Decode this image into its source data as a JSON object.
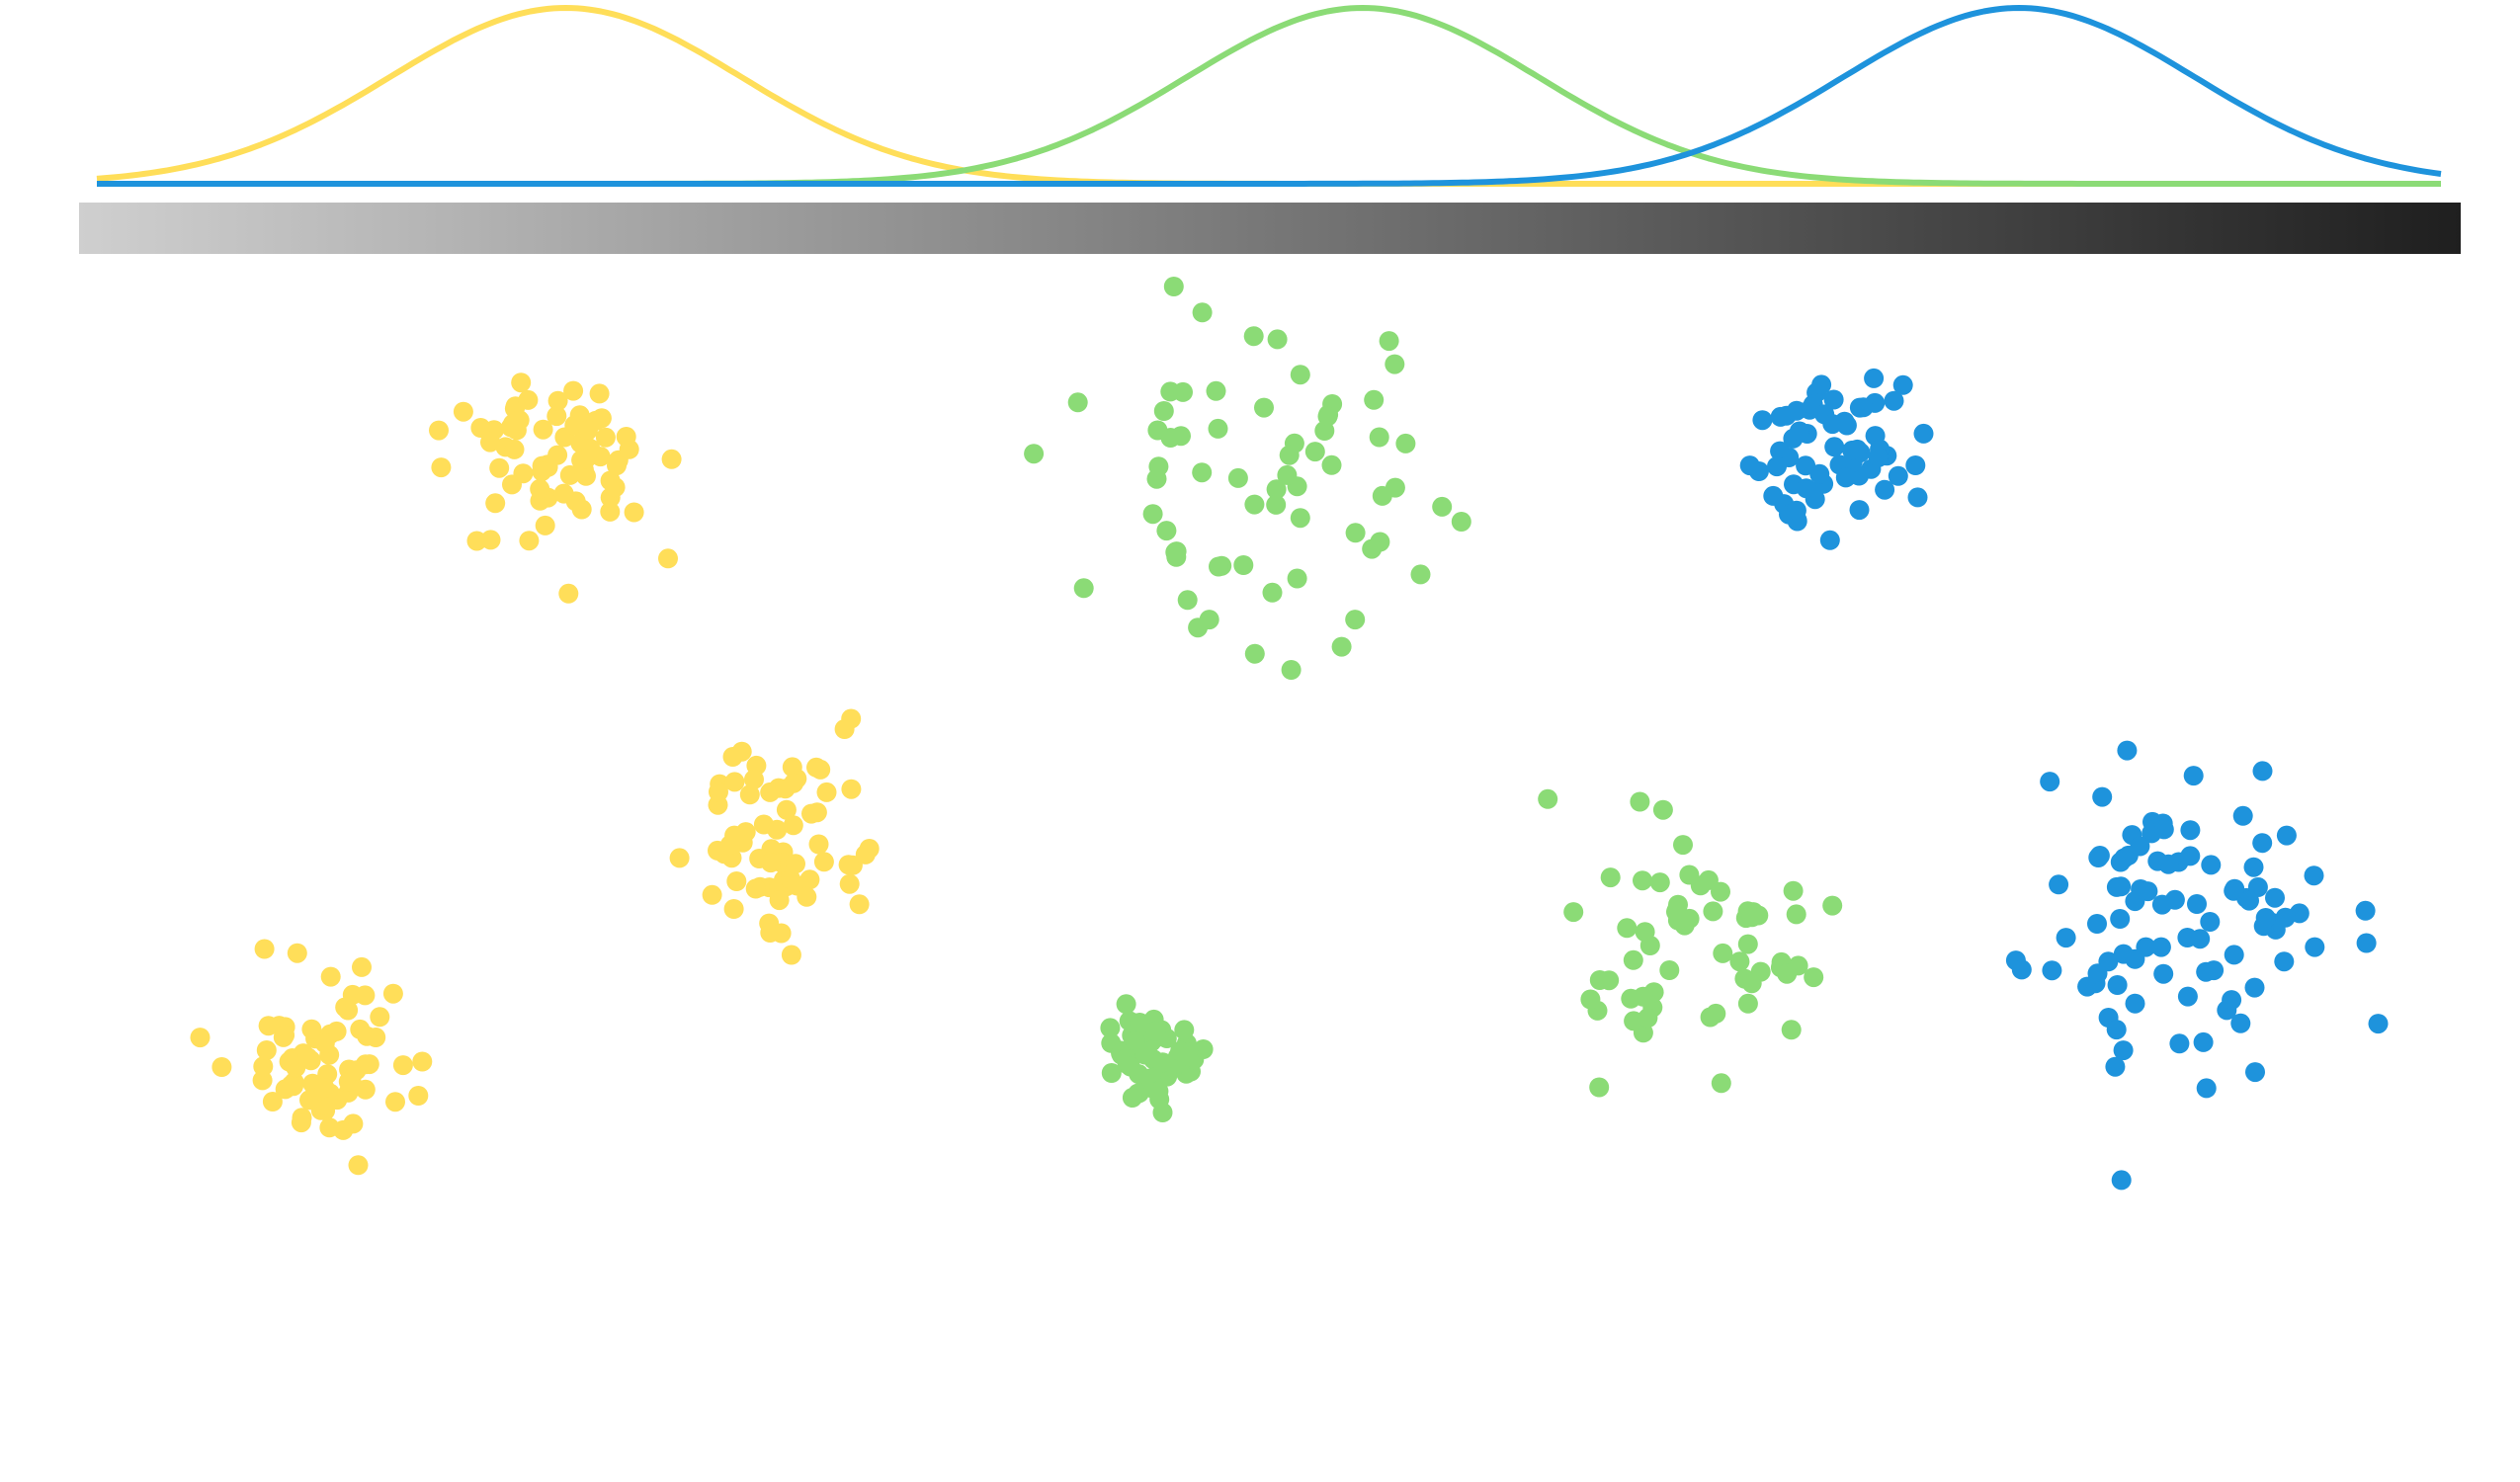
{
  "diagram": {
    "colors": {
      "yellow": "#FFDE59",
      "green": "#8BDB76",
      "blue": "#1E93DC",
      "gradient_start": "#CFCFCF",
      "gradient_end": "#1F1F1F"
    },
    "curves": [
      {
        "name": "yellow",
        "mu": 0.2,
        "sigma": 0.075
      },
      {
        "name": "green",
        "mu": 0.54,
        "sigma": 0.075
      },
      {
        "name": "blue",
        "mu": 0.82,
        "sigma": 0.075
      }
    ],
    "clusters": [
      {
        "name": "yellow-cluster-top",
        "color": "yellow",
        "count": 70,
        "spread": 0.08,
        "seed": 11
      },
      {
        "name": "green-cluster-top",
        "color": "green",
        "count": 65,
        "spread": 0.12,
        "seed": 23
      },
      {
        "name": "blue-cluster-top",
        "color": "blue",
        "count": 60,
        "spread": 0.07,
        "seed": 37
      },
      {
        "name": "yellow-cluster-middle",
        "color": "yellow",
        "count": 70,
        "spread": 0.08,
        "seed": 41
      },
      {
        "name": "yellow-cluster-bottom",
        "color": "yellow",
        "count": 70,
        "spread": 0.08,
        "seed": 53
      },
      {
        "name": "green-cluster-bottom",
        "color": "green",
        "count": 55,
        "spread": 0.05,
        "seed": 67
      },
      {
        "name": "green-cluster-right",
        "color": "green",
        "count": 60,
        "spread": 0.1,
        "seed": 71
      },
      {
        "name": "blue-cluster-large",
        "color": "blue",
        "count": 90,
        "spread": 0.13,
        "seed": 89
      }
    ]
  }
}
